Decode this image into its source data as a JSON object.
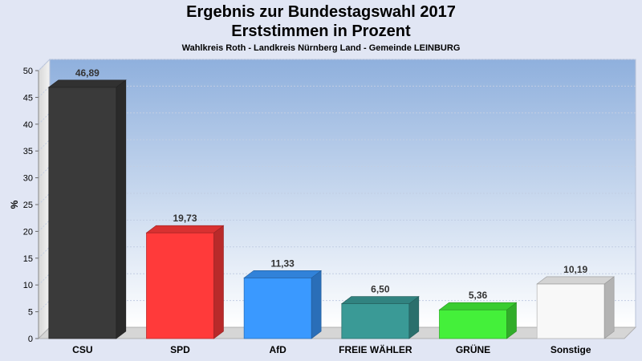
{
  "chart_data": {
    "type": "bar",
    "title": "Ergebnis zur Bundestagswahl 2017",
    "subtitle": "Erststimmen in Prozent",
    "caption": "Wahlkreis Roth - Landkreis Nürnberg Land - Gemeinde LEINBURG",
    "ylabel": "%",
    "xlabel": "",
    "ylim": [
      0,
      50
    ],
    "yticks": [
      "0",
      "5",
      "10",
      "15",
      "20",
      "25",
      "30",
      "35",
      "40",
      "45",
      "50"
    ],
    "grid": true,
    "categories": [
      "CSU",
      "SPD",
      "AfD",
      "FREIE WÄHLER",
      "GRÜNE",
      "Sonstige"
    ],
    "values": [
      46.89,
      19.73,
      11.33,
      6.5,
      5.36,
      10.19
    ],
    "value_labels": [
      "46,89",
      "19,73",
      "11,33",
      "6,50",
      "5,36",
      "10,19"
    ],
    "colors": [
      "#3a3a3a",
      "#ff3a3a",
      "#3a99ff",
      "#3a9a96",
      "#44f03a",
      "#f8f8f8"
    ]
  }
}
